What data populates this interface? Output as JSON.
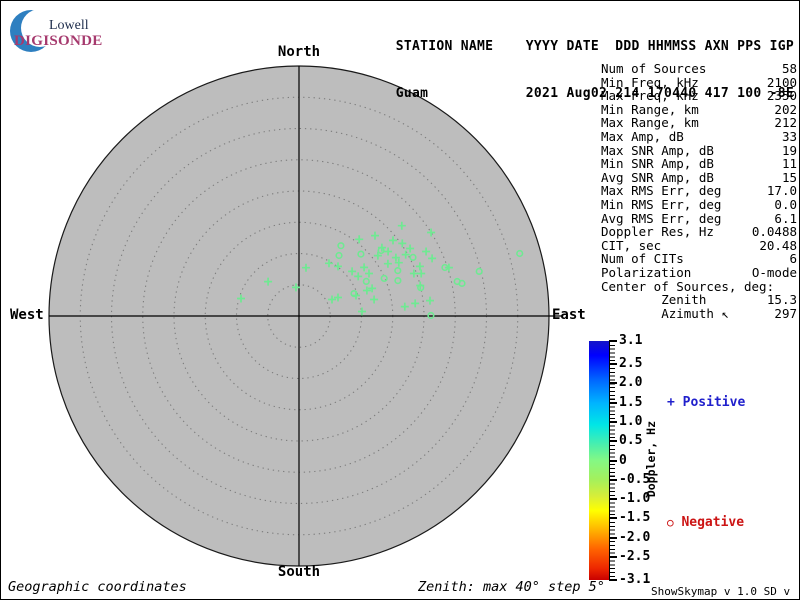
{
  "logo": {
    "line1": "Lowell",
    "line2": "DIGISONDE",
    "arc_color": "#2e7fc0",
    "digisonde_color": "#a63a6e"
  },
  "header": {
    "line1": "STATION NAME    YYYY DATE  DDD HHMMSS AXN PPS IGP",
    "line2": "Guam            2021 Aug02 214 170440 417 100 -8E"
  },
  "compass": {
    "north": "North",
    "south": "South",
    "west": "West",
    "east": "East"
  },
  "stats": {
    "rows": [
      {
        "label": "Num of Sources",
        "value": "58"
      },
      {
        "label": "Min Freq, kHz",
        "value": "2100"
      },
      {
        "label": "Max Freq, kHz",
        "value": "2350"
      },
      {
        "label": "Min Range, km",
        "value": "202"
      },
      {
        "label": "Max Range, km",
        "value": "212"
      },
      {
        "label": "Max Amp, dB",
        "value": "33"
      },
      {
        "label": "Max SNR Amp, dB",
        "value": "19"
      },
      {
        "label": "Min SNR Amp, dB",
        "value": "11"
      },
      {
        "label": "Avg SNR Amp, dB",
        "value": "15"
      },
      {
        "label": "Max RMS Err, deg",
        "value": "17.0"
      },
      {
        "label": "Min RMS Err, deg",
        "value": "0.0"
      },
      {
        "label": "Avg RMS Err, deg",
        "value": "6.1"
      },
      {
        "label": "Doppler Res, Hz",
        "value": "0.0488"
      },
      {
        "label": "CIT, sec",
        "value": "20.48"
      },
      {
        "label": "Num of CITs",
        "value": "6"
      },
      {
        "label": "Polarization",
        "value": "O-mode"
      },
      {
        "label": "Center of Sources, deg:",
        "value": ""
      },
      {
        "label": "        Zenith",
        "value": "15.3"
      },
      {
        "label": "        Azimuth ↖",
        "value": "297"
      }
    ]
  },
  "colorbar": {
    "title": "Doppler, Hz",
    "range": [
      -3.1,
      3.1
    ],
    "ticks": [
      {
        "value": 3.1,
        "label": "3.1"
      },
      {
        "value": 2.5,
        "label": "2.5"
      },
      {
        "value": 2.0,
        "label": "2.0"
      },
      {
        "value": 1.5,
        "label": "1.5"
      },
      {
        "value": 1.0,
        "label": "1.0"
      },
      {
        "value": 0.5,
        "label": "0.5"
      },
      {
        "value": 0.0,
        "label": "0"
      },
      {
        "value": -0.5,
        "label": "-0.5"
      },
      {
        "value": -1.0,
        "label": "-1.0"
      },
      {
        "value": -1.5,
        "label": "-1.5"
      },
      {
        "value": -2.0,
        "label": "-2.0"
      },
      {
        "value": -2.5,
        "label": "-2.5"
      },
      {
        "value": -3.1,
        "label": "-3.1"
      }
    ],
    "legend_positive": {
      "symbol": "+",
      "label": "Positive",
      "color": "#2020cc"
    },
    "legend_negative": {
      "symbol": "○",
      "label": "Negative",
      "color": "#cc1414"
    }
  },
  "footer": {
    "left": "Geographic coordinates",
    "center": "Zenith: max 40°  step 5°",
    "right": "ShowSkymap v 1.0  SD v 5.1"
  },
  "chart_data": {
    "type": "scatter",
    "projection": "polar-skymap",
    "zenith_max_deg": 40,
    "zenith_step_deg": 5,
    "doppler_range_hz": [
      -3.1,
      3.1
    ],
    "marker_color": "#6fe992",
    "disc_color": "#bdbdbd",
    "positive_symbol": "+",
    "negative_symbol": "o",
    "sources": [
      {
        "z": 21.9,
        "a": 48.7,
        "p": "+"
      },
      {
        "z": 17.7,
        "a": 43.4,
        "p": "+"
      },
      {
        "z": 25.0,
        "a": 57.7,
        "p": "+"
      },
      {
        "z": 15.6,
        "a": 38.1,
        "p": "+"
      },
      {
        "z": 20.2,
        "a": 54.9,
        "p": "+"
      },
      {
        "z": 17.2,
        "a": 50.5,
        "p": "+"
      },
      {
        "z": 17.6,
        "a": 54.1,
        "p": "+"
      },
      {
        "z": 19.7,
        "a": 60.1,
        "p": "+"
      },
      {
        "z": 18.1,
        "a": 58.9,
        "p": "+"
      },
      {
        "z": 16.5,
        "a": 59.5,
        "p": "+"
      },
      {
        "z": 23.2,
        "a": 66.6,
        "p": "+"
      },
      {
        "z": 25.2,
        "a": 72.1,
        "p": "+"
      },
      {
        "z": 7.8,
        "a": 8.2,
        "p": "+"
      },
      {
        "z": 9.7,
        "a": 29.7,
        "p": "+"
      },
      {
        "z": 10.1,
        "a": 38.2,
        "p": "+"
      },
      {
        "z": 11.1,
        "a": 50.0,
        "p": "+"
      },
      {
        "z": 13.0,
        "a": 53.3,
        "p": "+"
      },
      {
        "z": 11.4,
        "a": 56.2,
        "p": "+"
      },
      {
        "z": 13.1,
        "a": 58.7,
        "p": "+"
      },
      {
        "z": 7.4,
        "a": 318.1,
        "p": "+"
      },
      {
        "z": 4.6,
        "a": 354.0,
        "p": "+"
      },
      {
        "z": 19.6,
        "a": 69.7,
        "p": "+"
      },
      {
        "z": 20.7,
        "a": 70.8,
        "p": "+"
      },
      {
        "z": 20.9,
        "a": 67.7,
        "p": "+"
      },
      {
        "z": 5.9,
        "a": 63.4,
        "p": "+"
      },
      {
        "z": 6.9,
        "a": 64.6,
        "p": "+"
      },
      {
        "z": 9.7,
        "a": 70.2,
        "p": "+"
      },
      {
        "z": 11.6,
        "a": 69.4,
        "p": "+"
      },
      {
        "z": 12.5,
        "a": 69.3,
        "p": "+"
      },
      {
        "z": 12.3,
        "a": 77.6,
        "p": "+"
      },
      {
        "z": 10.1,
        "a": 85.9,
        "p": "+"
      },
      {
        "z": 17.0,
        "a": 84.9,
        "p": "+"
      },
      {
        "z": 18.7,
        "a": 83.8,
        "p": "+"
      },
      {
        "z": 21.1,
        "a": 83.3,
        "p": "+"
      },
      {
        "z": 9.7,
        "a": 286.8,
        "p": "+"
      },
      {
        "z": 20.0,
        "a": 75.9,
        "p": "+"
      },
      {
        "z": 19.3,
        "a": 51.2,
        "p": "+"
      },
      {
        "z": 20.8,
        "a": 58.7,
        "p": "+"
      },
      {
        "z": 15.9,
        "a": 52.6,
        "p": "+"
      },
      {
        "z": 18.1,
        "a": 61.9,
        "p": "+"
      },
      {
        "z": 22.8,
        "a": 63.1,
        "p": "+"
      },
      {
        "z": 13.1,
        "a": 30.8,
        "p": "o"
      },
      {
        "z": 11.6,
        "a": 33.5,
        "p": "o"
      },
      {
        "z": 16.8,
        "a": 51.4,
        "p": "o"
      },
      {
        "z": 17.4,
        "a": 65.3,
        "p": "o"
      },
      {
        "z": 16.8,
        "a": 70.3,
        "p": "o"
      },
      {
        "z": 14.9,
        "a": 66.2,
        "p": "o"
      },
      {
        "z": 12.1,
        "a": 62.8,
        "p": "o"
      },
      {
        "z": 20.5,
        "a": 62.8,
        "p": "o"
      },
      {
        "z": 24.6,
        "a": 71.6,
        "p": "o"
      },
      {
        "z": 29.7,
        "a": 76.1,
        "p": "o"
      },
      {
        "z": 25.9,
        "a": 77.7,
        "p": "o"
      },
      {
        "z": 26.6,
        "a": 78.7,
        "p": "o"
      },
      {
        "z": 20.0,
        "a": 76.9,
        "p": "o"
      },
      {
        "z": 36.7,
        "a": 74.2,
        "p": "o"
      },
      {
        "z": 21.1,
        "a": 89.8,
        "p": "o"
      },
      {
        "z": 9.5,
        "a": 67.8,
        "p": "o"
      },
      {
        "z": 14.0,
        "a": 45.0,
        "p": "o"
      }
    ]
  }
}
